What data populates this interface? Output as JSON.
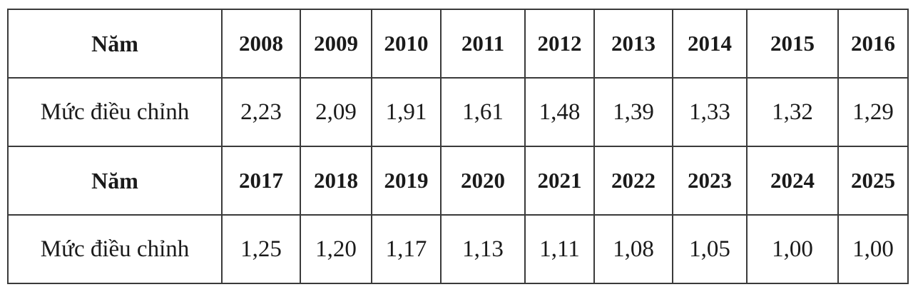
{
  "table": {
    "rows": [
      {
        "type": "header",
        "label": "Năm",
        "cells": [
          "2008",
          "2009",
          "2010",
          "2011",
          "2012",
          "2013",
          "2014",
          "2015",
          "2016"
        ]
      },
      {
        "type": "value",
        "label": "Mức điều chỉnh",
        "cells": [
          "2,23",
          "2,09",
          "1,91",
          "1,61",
          "1,48",
          "1,39",
          "1,33",
          "1,32",
          "1,29"
        ]
      },
      {
        "type": "header",
        "label": "Năm",
        "cells": [
          "2017",
          "2018",
          "2019",
          "2020",
          "2021",
          "2022",
          "2023",
          "2024",
          "2025"
        ]
      },
      {
        "type": "value",
        "label": "Mức điều chỉnh",
        "cells": [
          "1,25",
          "1,20",
          "1,17",
          "1,13",
          "1,11",
          "1,08",
          "1,05",
          "1,00",
          "1,00"
        ]
      }
    ]
  }
}
